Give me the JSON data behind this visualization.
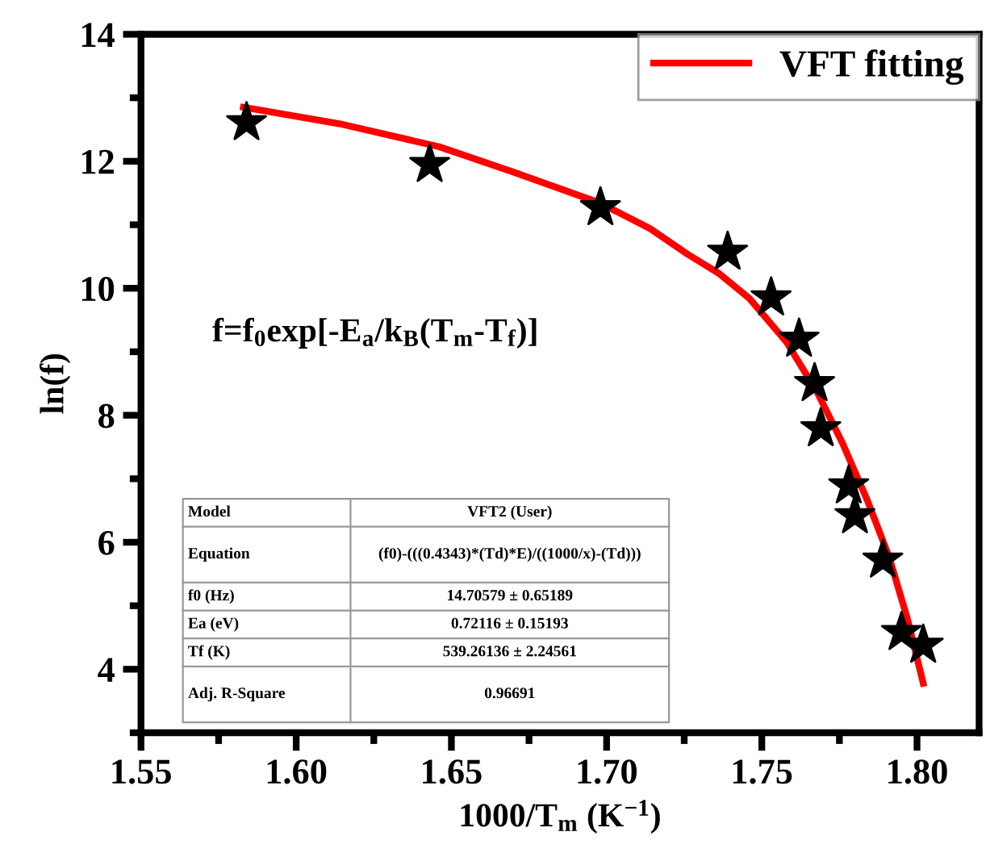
{
  "chart_data": {
    "type": "scatter",
    "xlabel": "1000/T$_{m}$ (K$^{−1}$)",
    "ylabel": "ln(f)",
    "xlim": [
      1.55,
      1.82
    ],
    "ylim": [
      3,
      14
    ],
    "xticks": [
      1.55,
      {
        "value": 1.575,
        "label": null
      },
      {
        "value": 1.6,
        "label": "1.60"
      },
      {
        "value": 1.625,
        "label": null
      },
      1.65,
      {
        "value": 1.675,
        "label": null
      },
      {
        "value": 1.7,
        "label": "1.70"
      },
      {
        "value": 1.725,
        "label": null
      },
      1.75,
      {
        "value": 1.775,
        "label": null
      },
      {
        "value": 1.8,
        "label": "1.80"
      }
    ],
    "yticks": [
      {
        "value": 3,
        "label": null
      },
      4,
      {
        "value": 5,
        "label": null
      },
      6,
      {
        "value": 7,
        "label": null
      },
      8,
      {
        "value": 9,
        "label": null
      },
      10,
      {
        "value": 11,
        "label": null
      },
      12,
      {
        "value": 13,
        "label": null
      },
      14
    ],
    "grid": false,
    "legend": "top right",
    "series": [
      {
        "color": "#000000",
        "marker": "star",
        "x": [
          1.584,
          1.643,
          1.698,
          1.739,
          1.753,
          1.762,
          1.767,
          1.769,
          1.778,
          1.78,
          1.789,
          1.795,
          1.802
        ],
        "values": [
          12.61,
          11.95,
          11.27,
          10.57,
          9.85,
          9.2,
          8.5,
          7.79,
          6.89,
          6.42,
          5.72,
          4.58,
          4.38
        ]
      },
      {
        "type": "line",
        "name": "VFT fitting",
        "color": "#ff0000",
        "line_style": "solid",
        "x": [
          1.583,
          1.615,
          1.646,
          1.67,
          1.698,
          1.714,
          1.726,
          1.736,
          1.746,
          1.758,
          1.768,
          1.776,
          1.784,
          1.791,
          1.797,
          1.802
        ],
        "values": [
          12.85,
          12.58,
          12.23,
          11.83,
          11.34,
          10.94,
          10.54,
          10.24,
          9.84,
          9.15,
          8.35,
          7.56,
          6.66,
          5.77,
          4.78,
          3.78
        ]
      }
    ],
    "annotations": [
      "f=f$_{0}$exp[-E$_{a}$/k$_{B}$(T$_{m}$-T$_{f}$)]",
      "Model",
      "VFT2 (User)",
      "Equation",
      "(f0)-(((0.4343)*(Td)*E)/((1000/x)-(Td)))",
      "f0 (Hz)",
      "14.70579 ± 0.65189",
      "Ea (eV)",
      "0.72116 ± 0.15193",
      "Tf (K)",
      "539.26136 ± 2.24561",
      "Adj. R-Square",
      "0.96691"
    ]
  }
}
